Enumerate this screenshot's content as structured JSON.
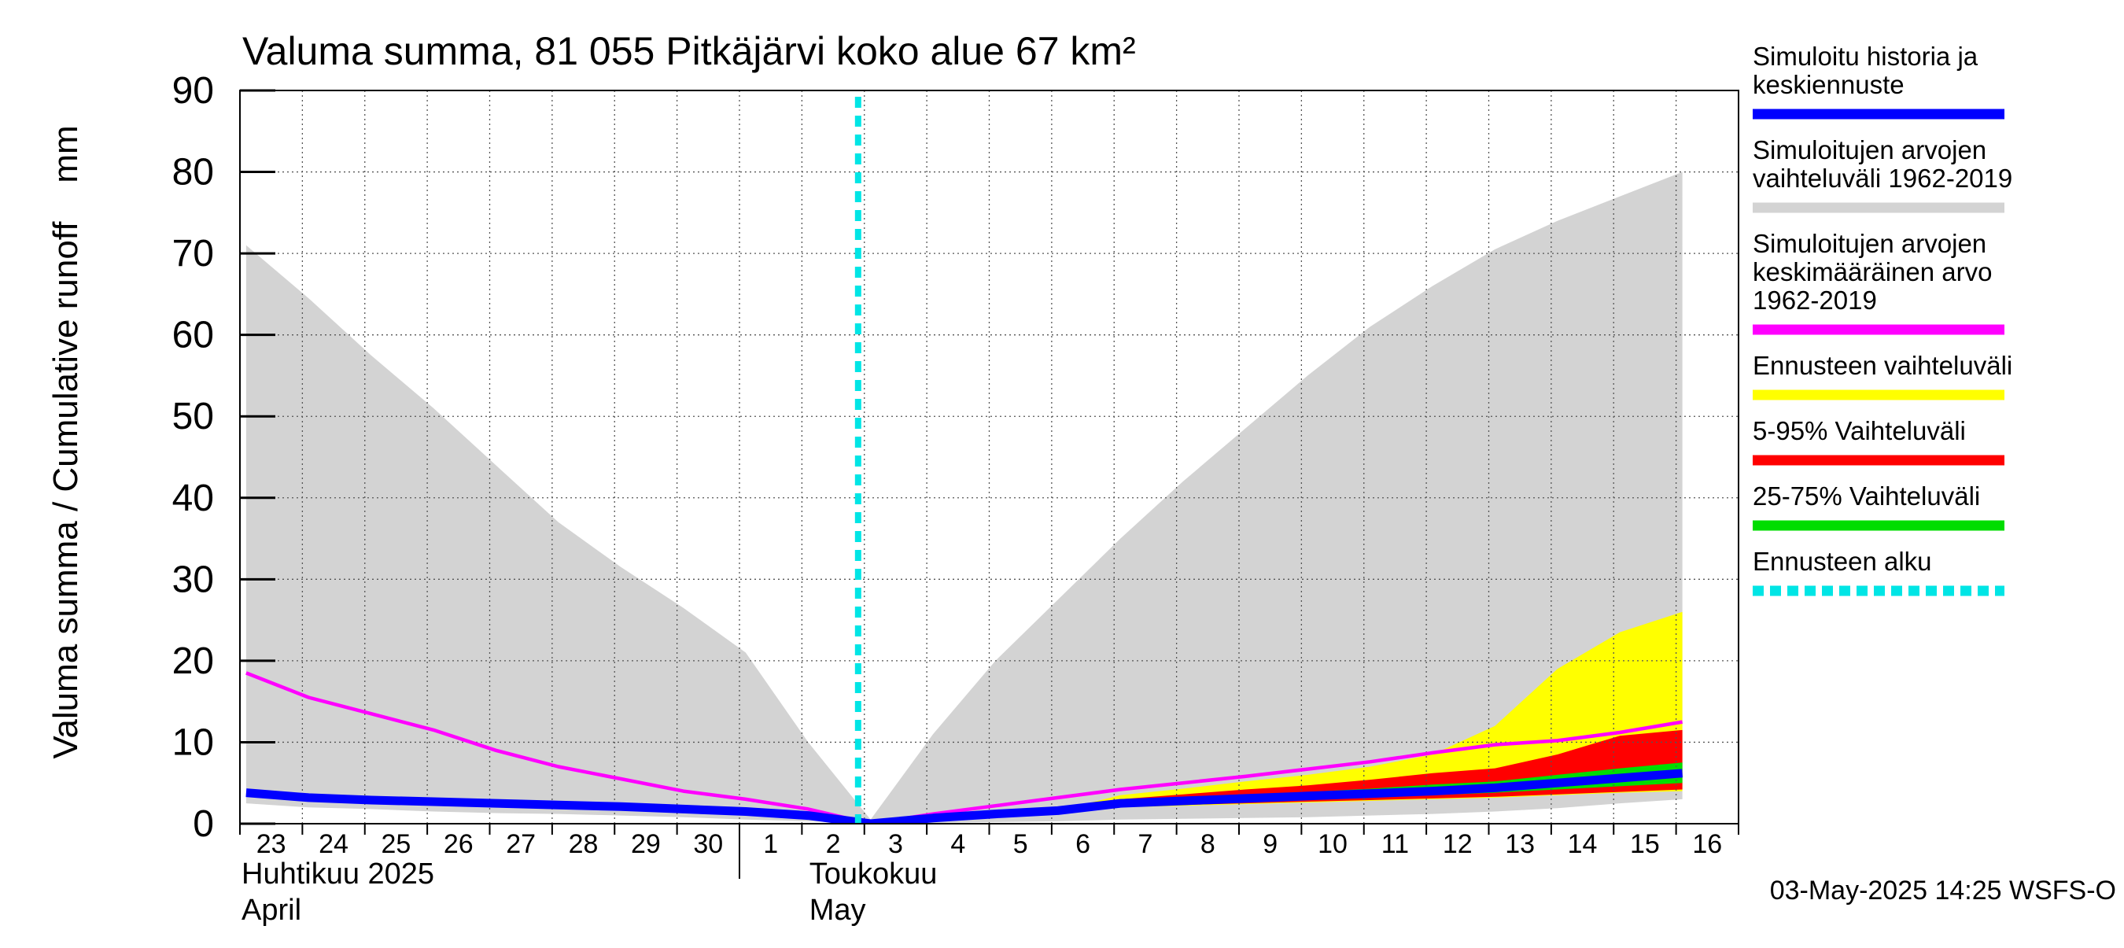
{
  "chart_data": {
    "type": "area",
    "title": "Valuma summa, 81 055 Pitkäjärvi koko alue 67 km²",
    "ylabel": "Valuma summa / Cumulative runoff    mm",
    "ylim": [
      0,
      90
    ],
    "yticks": [
      0,
      10,
      20,
      30,
      40,
      50,
      60,
      70,
      80,
      90
    ],
    "grid": true,
    "legend_position": "right",
    "x_start": "2025-04-23",
    "x_end": "2025-05-16",
    "forecast_start": "2025-05-02",
    "x_tick_labels": [
      "23",
      "24",
      "25",
      "26",
      "27",
      "28",
      "29",
      "30",
      "1",
      "2",
      "3",
      "4",
      "5",
      "6",
      "7",
      "8",
      "9",
      "10",
      "11",
      "12",
      "13",
      "14",
      "15",
      "16"
    ],
    "month_labels": [
      {
        "line1": "Huhtikuu  2025",
        "line2": "April"
      },
      {
        "line1": "Toukokuu",
        "line2": "May"
      }
    ],
    "footer": "03-May-2025 14:25 WSFS-O",
    "x": [
      0,
      1,
      2,
      3,
      4,
      5,
      6,
      7,
      8,
      9,
      10,
      11,
      12,
      13,
      14,
      15,
      16,
      17,
      18,
      19,
      20,
      21,
      22,
      23
    ],
    "series": [
      {
        "name": "Simuloitujen arvojen vaihteluväli 1962-2019",
        "kind": "band",
        "color": "#d3d3d3",
        "upper": [
          71,
          64.5,
          57.5,
          51,
          44,
          37,
          31.5,
          26.5,
          21,
          10,
          0.5,
          11,
          20,
          27.5,
          35,
          42,
          48.5,
          55,
          61,
          66,
          70.5,
          74,
          77,
          80
        ],
        "lower": [
          2.5,
          2,
          1.8,
          1.5,
          1.3,
          1.2,
          1,
          0.8,
          0.5,
          0.3,
          0,
          0.1,
          0.2,
          0.3,
          0.5,
          0.6,
          0.7,
          0.8,
          1,
          1.2,
          1.5,
          1.9,
          2.5,
          3
        ]
      },
      {
        "name": "Ennusteen vaihteluväli",
        "kind": "band",
        "color": "#ffff00",
        "upper": [
          null,
          null,
          null,
          null,
          null,
          null,
          null,
          null,
          null,
          null,
          0,
          0.7,
          1.2,
          1.6,
          3.5,
          4.3,
          5.2,
          6,
          7,
          8.5,
          12,
          19,
          23.5,
          26
        ],
        "lower": [
          null,
          null,
          null,
          null,
          null,
          null,
          null,
          null,
          null,
          null,
          0,
          0.5,
          1,
          1.3,
          2,
          2.2,
          2.4,
          2.6,
          2.8,
          3,
          3.2,
          3.5,
          3.8,
          4
        ]
      },
      {
        "name": "5-95% Vaihteluväli",
        "kind": "band",
        "color": "#ff0000",
        "upper": [
          null,
          null,
          null,
          null,
          null,
          null,
          null,
          null,
          null,
          null,
          0,
          0.6,
          1.1,
          1.5,
          3,
          3.6,
          4.2,
          4.7,
          5.4,
          6.2,
          6.8,
          8.5,
          10.8,
          11.5
        ],
        "lower": [
          null,
          null,
          null,
          null,
          null,
          null,
          null,
          null,
          null,
          null,
          0,
          0.5,
          1,
          1.3,
          2.1,
          2.3,
          2.5,
          2.7,
          2.9,
          3.1,
          3.3,
          3.6,
          3.9,
          4.2
        ]
      },
      {
        "name": "25-75% Vaihteluväli",
        "kind": "band",
        "color": "#00dd00",
        "upper": [
          null,
          null,
          null,
          null,
          null,
          null,
          null,
          null,
          null,
          null,
          0,
          0.55,
          1.05,
          1.4,
          2.7,
          3.1,
          3.5,
          3.9,
          4.3,
          4.8,
          5.2,
          6,
          6.8,
          7.5
        ],
        "lower": [
          null,
          null,
          null,
          null,
          null,
          null,
          null,
          null,
          null,
          null,
          0,
          0.5,
          1,
          1.3,
          2.3,
          2.5,
          2.8,
          3,
          3.2,
          3.5,
          3.8,
          4.2,
          4.6,
          5
        ]
      },
      {
        "name": "Simuloitujen arvojen keskimääräinen arvo 1962-2019",
        "kind": "line",
        "color": "#ff00ff",
        "values": [
          18.5,
          15.5,
          13.5,
          11.5,
          9,
          7,
          5.5,
          4,
          3,
          1.8,
          0,
          1.2,
          2.2,
          3.2,
          4.2,
          5,
          5.8,
          6.7,
          7.6,
          8.7,
          9.7,
          10.2,
          11.2,
          12.5
        ]
      },
      {
        "name": "Simuloitu historia ja keskiennuste",
        "kind": "line",
        "color": "#0000ff",
        "values": [
          3.8,
          3.2,
          2.9,
          2.7,
          2.5,
          2.3,
          2.1,
          1.8,
          1.5,
          1,
          0,
          0.7,
          1.2,
          1.6,
          2.5,
          2.8,
          3.1,
          3.4,
          3.7,
          4,
          4.4,
          5,
          5.6,
          6.2
        ]
      },
      {
        "name": "Ennusteen alku",
        "kind": "vline",
        "color": "#00e5e5",
        "x": 9.8
      }
    ],
    "legend": [
      {
        "text": "Simuloitu historia ja keskiennuste",
        "lines": [
          "Simuloitu historia ja",
          "keskiennuste"
        ],
        "color": "#0000ff",
        "style": "solid"
      },
      {
        "text": "Simuloitujen arvojen vaihteluväli 1962-2019",
        "lines": [
          "Simuloitujen arvojen",
          "vaihteluväli 1962-2019"
        ],
        "color": "#d3d3d3",
        "style": "solid"
      },
      {
        "text": "Simuloitujen arvojen keskimääräinen arvo 1962-2019",
        "lines": [
          "Simuloitujen arvojen",
          "keskimääräinen arvo",
          "   1962-2019"
        ],
        "color": "#ff00ff",
        "style": "solid"
      },
      {
        "text": "Ennusteen vaihteluväli",
        "lines": [
          "Ennusteen vaihteluväli"
        ],
        "color": "#ffff00",
        "style": "solid"
      },
      {
        "text": "5-95% Vaihteluväli",
        "lines": [
          "5-95% Vaihteluväli"
        ],
        "color": "#ff0000",
        "style": "solid"
      },
      {
        "text": "25-75% Vaihteluväli",
        "lines": [
          "25-75% Vaihteluväli"
        ],
        "color": "#00dd00",
        "style": "solid"
      },
      {
        "text": "Ennusteen alku",
        "lines": [
          "Ennusteen alku"
        ],
        "color": "#00e5e5",
        "style": "dashed"
      }
    ]
  }
}
